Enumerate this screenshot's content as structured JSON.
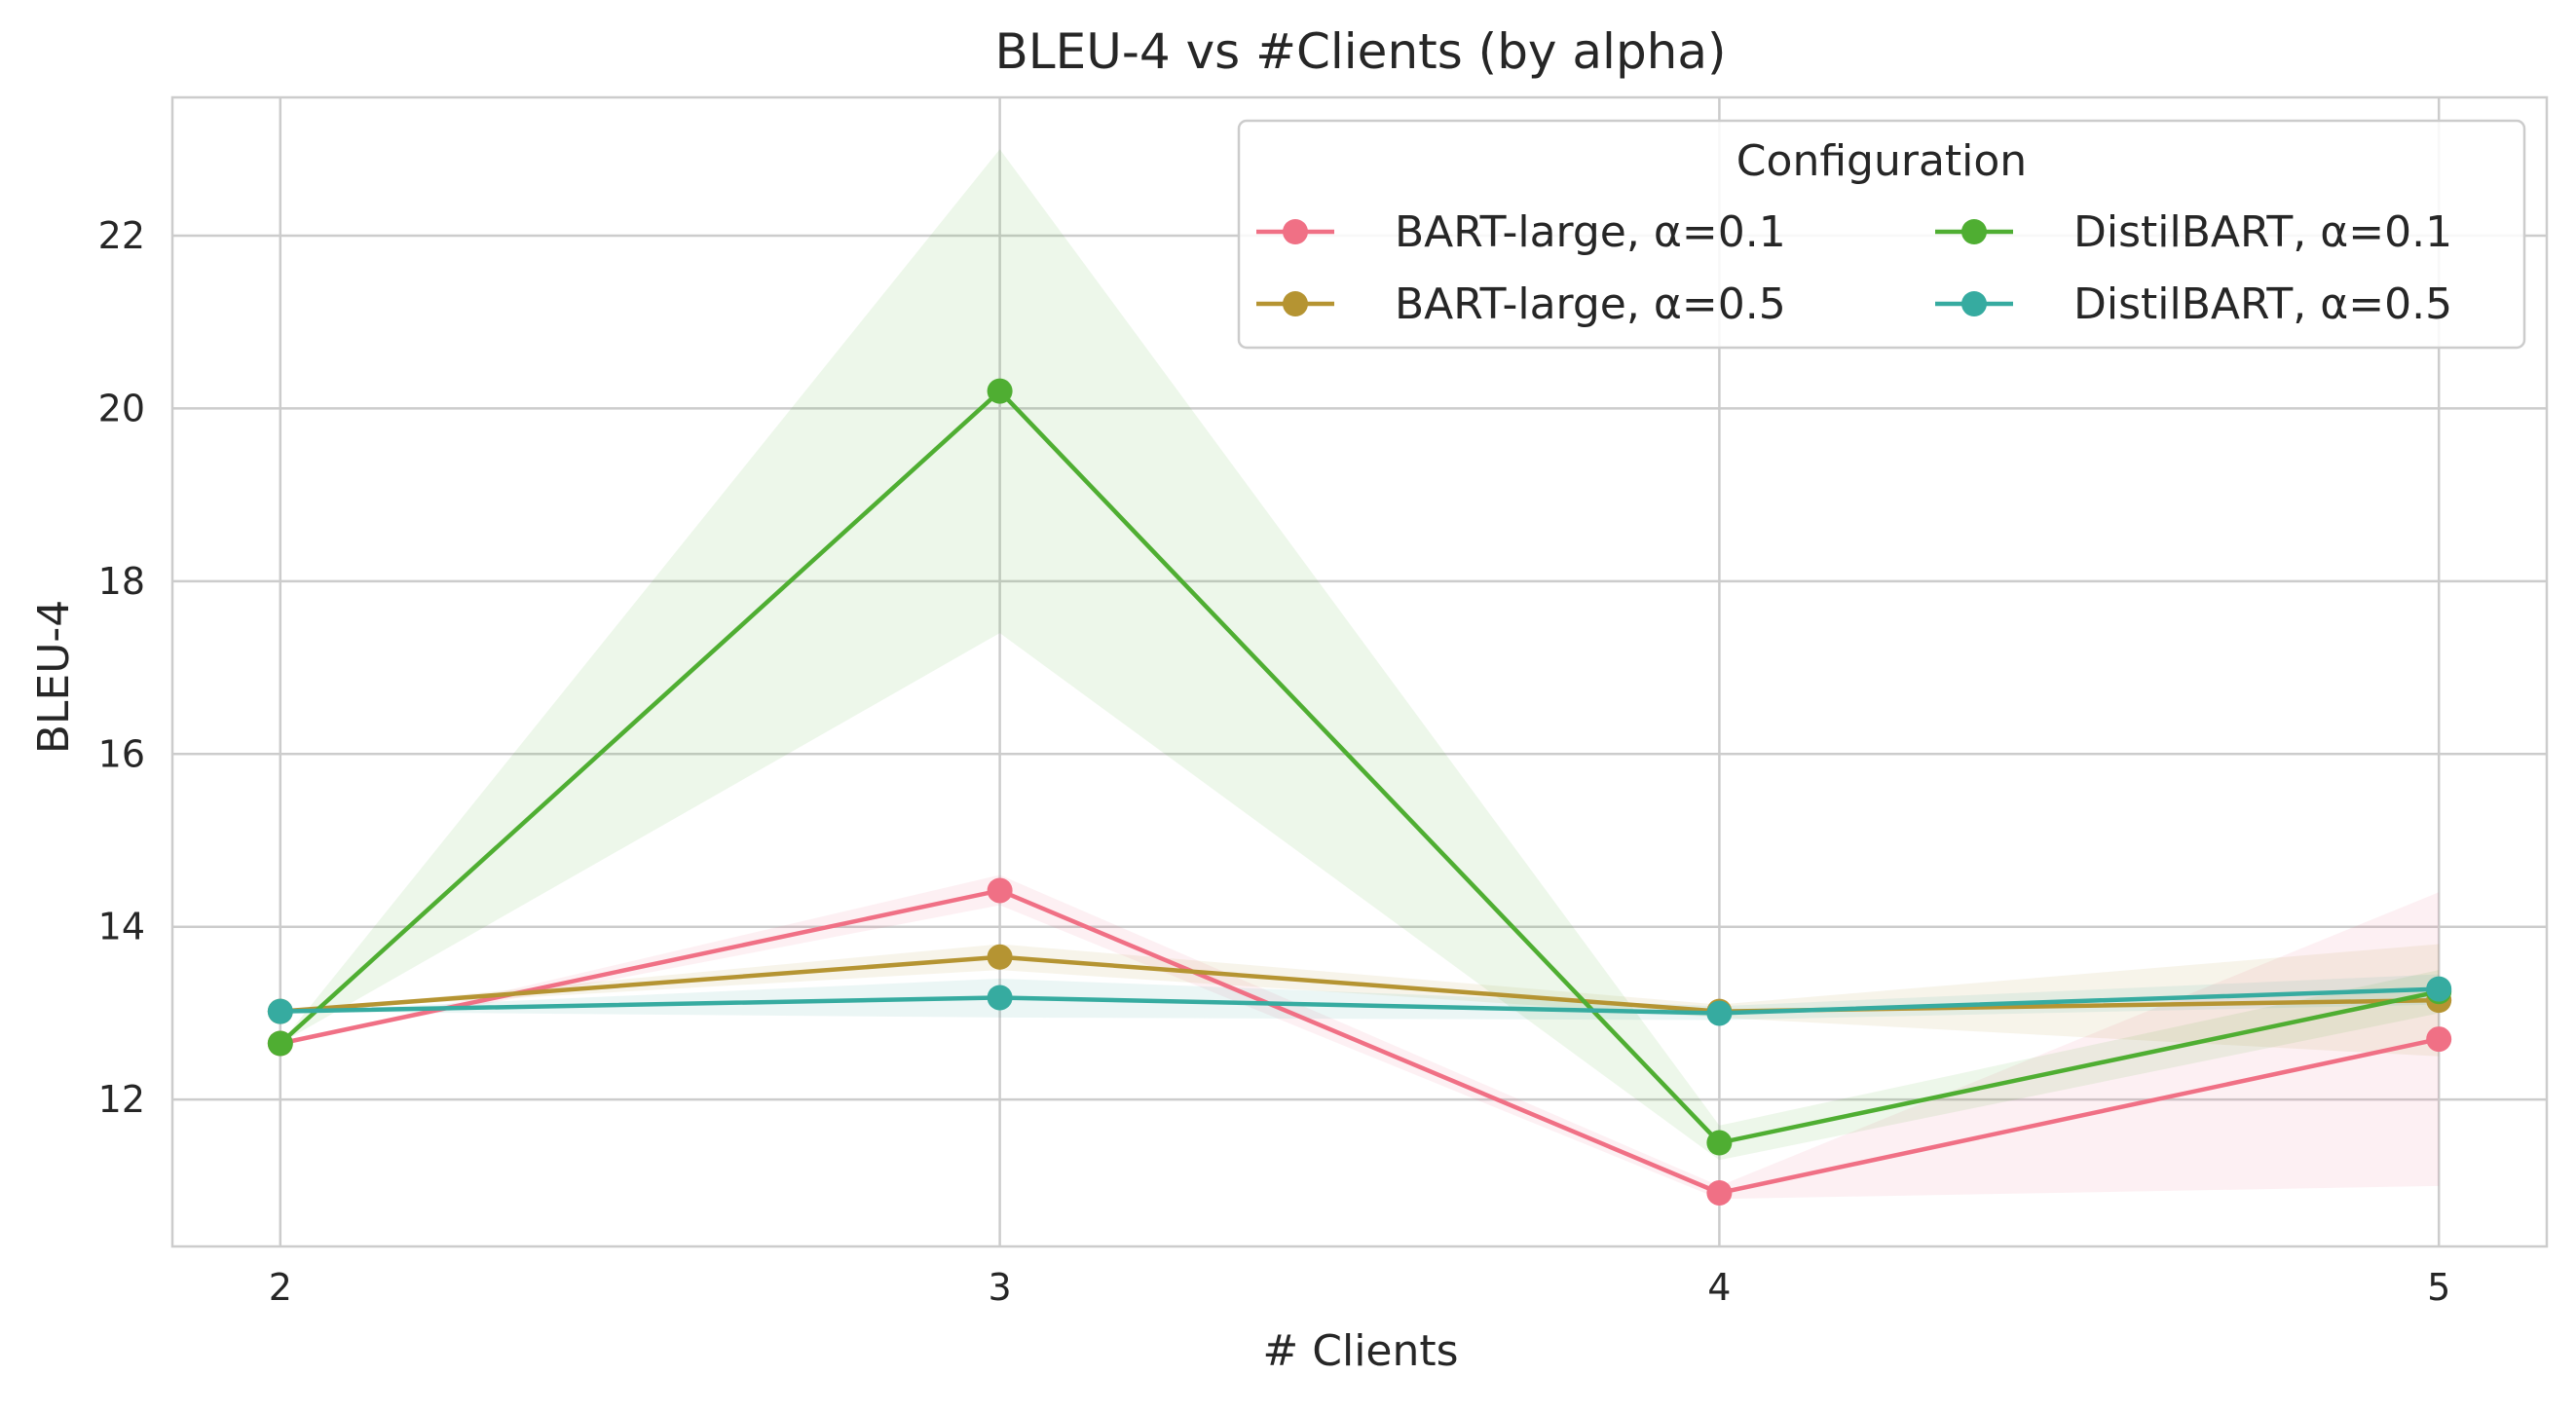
{
  "chart_data": {
    "type": "line",
    "title": "BLEU-4 vs #Clients (by alpha)",
    "xlabel": "# Clients",
    "ylabel": "BLEU-4",
    "x": [
      2,
      3,
      4,
      5
    ],
    "x_tick_labels": [
      "2",
      "3",
      "4",
      "5"
    ],
    "xlim": [
      1.85,
      5.15
    ],
    "ylim": [
      10.3,
      23.6
    ],
    "y_ticks": [
      12,
      14,
      16,
      18,
      20,
      22
    ],
    "y_tick_labels": [
      "12",
      "14",
      "16",
      "18",
      "20",
      "22"
    ],
    "grid": true,
    "legend": {
      "title": "Configuration",
      "placement": "top-right",
      "columns": 2
    },
    "series": [
      {
        "name": "BART-large, α=0.1",
        "color": "#f07085",
        "values": [
          12.65,
          14.42,
          10.92,
          12.7
        ],
        "band_lower": [
          12.65,
          14.25,
          10.85,
          11.0
        ],
        "band_upper": [
          12.65,
          14.6,
          11.0,
          14.4
        ]
      },
      {
        "name": "BART-large, α=0.5",
        "color": "#b59432",
        "values": [
          13.02,
          13.65,
          13.02,
          13.15
        ],
        "band_lower": [
          13.02,
          13.5,
          12.95,
          12.5
        ],
        "band_upper": [
          13.02,
          13.8,
          13.1,
          13.8
        ]
      },
      {
        "name": "DistilBART, α=0.1",
        "color": "#4fae32",
        "values": [
          12.65,
          20.2,
          11.5,
          13.25
        ],
        "band_lower": [
          12.65,
          17.4,
          11.3,
          13.0
        ],
        "band_upper": [
          12.65,
          23.0,
          11.7,
          13.5
        ]
      },
      {
        "name": "DistilBART, α=0.5",
        "color": "#36aba0",
        "values": [
          13.02,
          13.18,
          13.0,
          13.28
        ],
        "band_lower": [
          13.02,
          12.95,
          12.92,
          13.1
        ],
        "band_upper": [
          13.02,
          13.4,
          13.08,
          13.45
        ]
      }
    ]
  }
}
